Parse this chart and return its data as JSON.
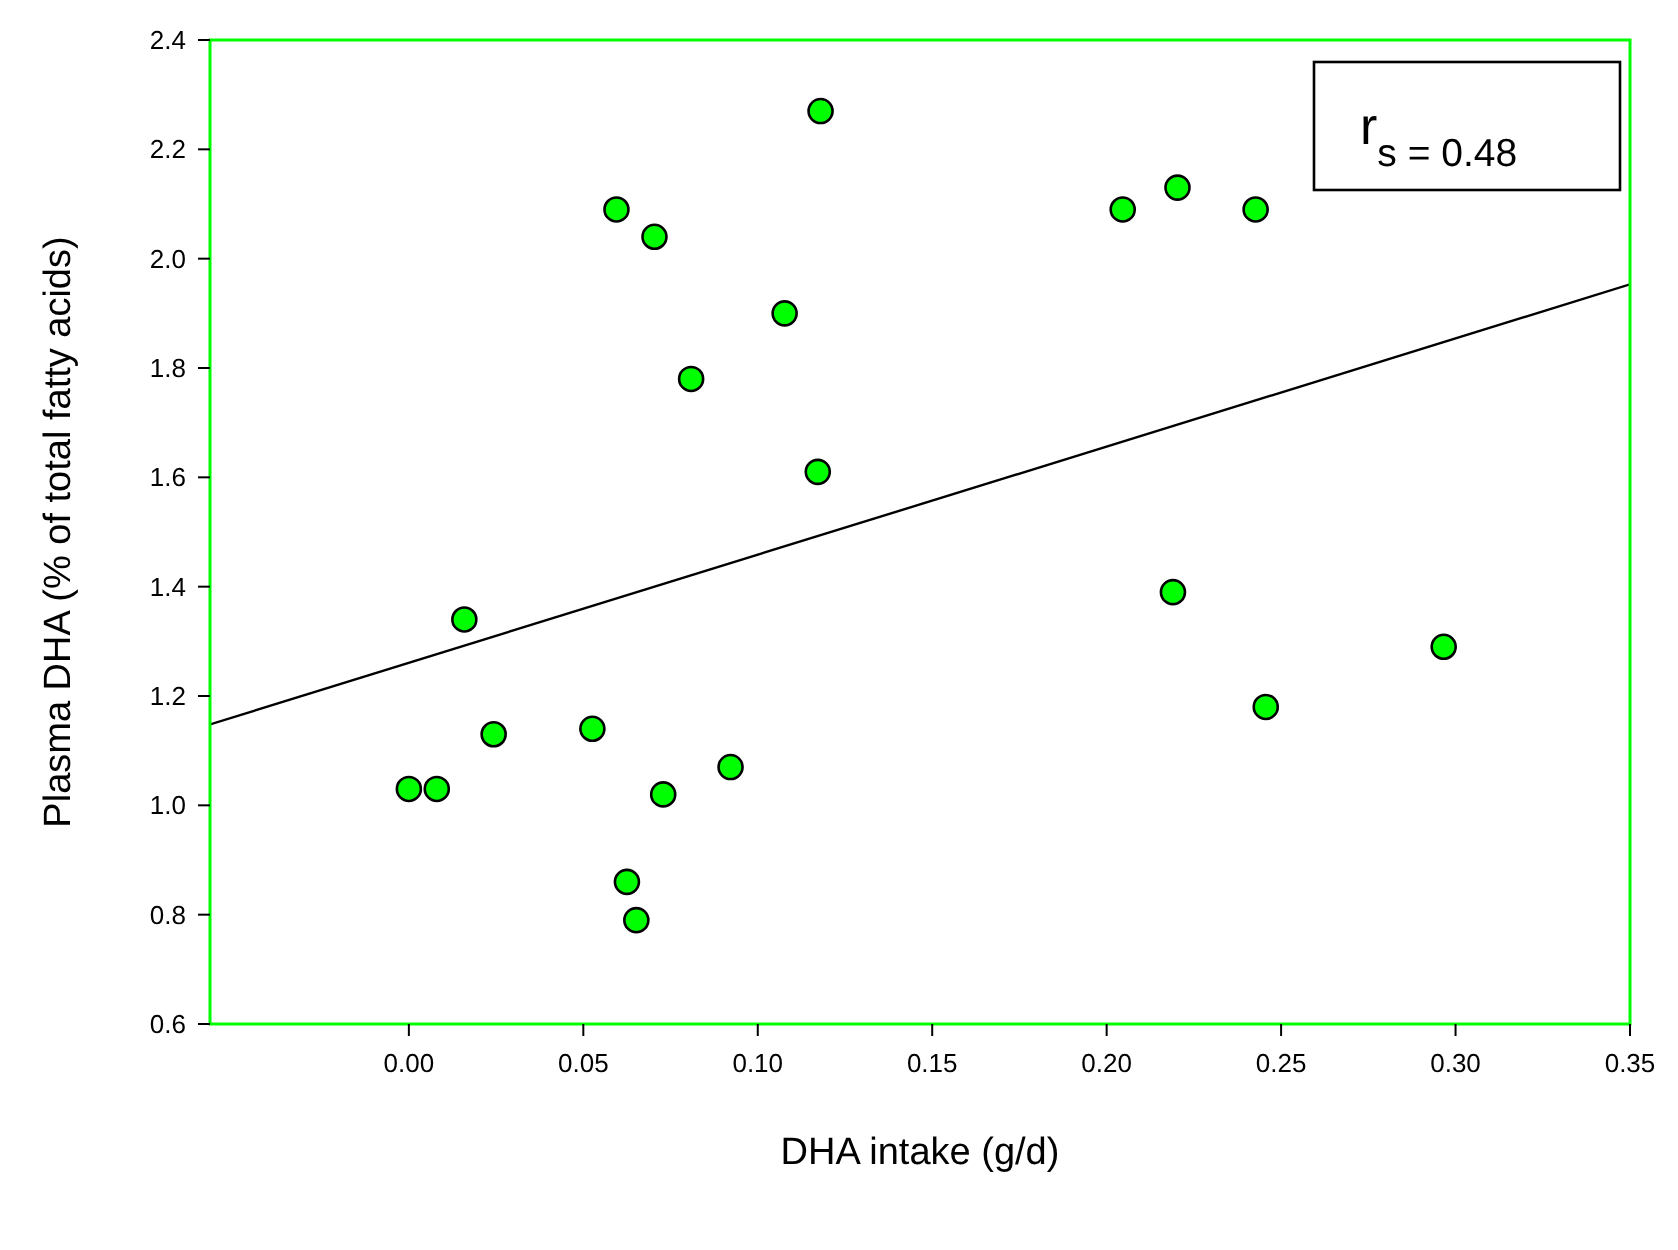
{
  "chart_data": {
    "type": "scatter",
    "xlabel": "DHA intake (g/d)",
    "ylabel": "Plasma DHA (% of total fatty acids)",
    "xlim": [
      -0.057,
      0.35
    ],
    "ylim": [
      0.6,
      2.4
    ],
    "xticks": [
      {
        "value": 0,
        "label": "0.00"
      },
      0.05,
      {
        "value": 0.1,
        "label": "0.10"
      },
      0.15,
      {
        "value": 0.2,
        "label": "0.20"
      },
      0.25,
      {
        "value": 0.3,
        "label": "0.30"
      },
      0.35
    ],
    "yticks": [
      0.6,
      0.8,
      {
        "value": 1,
        "label": "1.0"
      },
      1.2,
      1.4,
      1.6,
      1.8,
      {
        "value": 2,
        "label": "2.0"
      },
      2.2,
      2.4
    ],
    "grid": false,
    "annotations": [
      "r$_{s = 0.48}$"
    ],
    "series": [
      {
        "color": "#00ff00",
        "marker": "circle",
        "x": [
          0.118,
          0.0595,
          0.0704,
          0.1077,
          0.0809,
          0.1172,
          0.0159,
          0.0243,
          0.0526,
          0.0,
          0.008,
          0.0922,
          0.0729,
          0.0625,
          0.0652,
          0.2046,
          0.2203,
          0.2427,
          0.219,
          0.2966,
          0.2456
        ],
        "values": [
          2.27,
          2.09,
          2.04,
          1.9,
          1.78,
          1.61,
          1.34,
          1.13,
          1.14,
          1.03,
          1.03,
          1.07,
          1.02,
          0.86,
          0.79,
          2.09,
          2.13,
          2.09,
          1.39,
          1.29,
          1.18
        ]
      },
      {
        "type": "line",
        "color": "#000000",
        "x": [
          -0.057,
          0.35
        ],
        "values": [
          1.148,
          1.953
        ]
      }
    ]
  }
}
